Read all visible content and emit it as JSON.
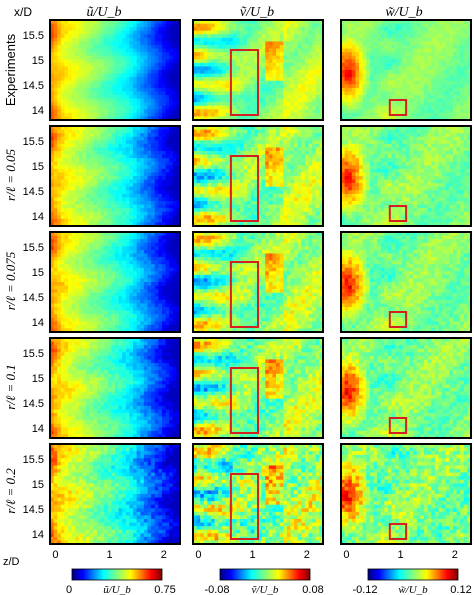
{
  "chart_data": {
    "type": "heatmap",
    "column_titles": [
      "ũ/U_b",
      "ṽ/U_b",
      "w̃/U_b"
    ],
    "row_labels": [
      "Experiments",
      "r/ℓ = 0.05",
      "r/ℓ = 0.075",
      "r/ℓ = 0.1",
      "r/ℓ = 0.2"
    ],
    "y_axis": {
      "label": "x/D",
      "ticks": [
        "15.5",
        "15",
        "14.5",
        "14"
      ],
      "range": [
        13.8,
        15.8
      ]
    },
    "x_axis": {
      "label": "z/D",
      "panel_ticks": [
        [
          "0",
          "1",
          "2"
        ],
        [
          "0",
          "1",
          "2"
        ],
        [
          "0",
          "1",
          "2"
        ]
      ],
      "range": [
        -0.1,
        2.3
      ]
    },
    "colorbars": [
      {
        "min": "0",
        "max": "0.75",
        "label": "ũ/U_b",
        "range": [
          0,
          0.75
        ]
      },
      {
        "min": "-0.08",
        "max": "0.08",
        "label": "ṽ/U_b",
        "range": [
          -0.08,
          0.08
        ]
      },
      {
        "min": "-0.12",
        "max": "0.12",
        "label": "w̃/U_b",
        "range": [
          -0.12,
          0.12
        ]
      }
    ],
    "highlight_boxes": [
      {
        "column": 1,
        "z_range": [
          0.6,
          1.1
        ],
        "x_range": [
          13.9,
          15.2
        ]
      },
      {
        "column": 2,
        "z_range": [
          0.8,
          1.1
        ],
        "x_range": [
          13.9,
          14.2
        ]
      }
    ],
    "colormap": "jet",
    "highlight_color": "#d42020"
  }
}
